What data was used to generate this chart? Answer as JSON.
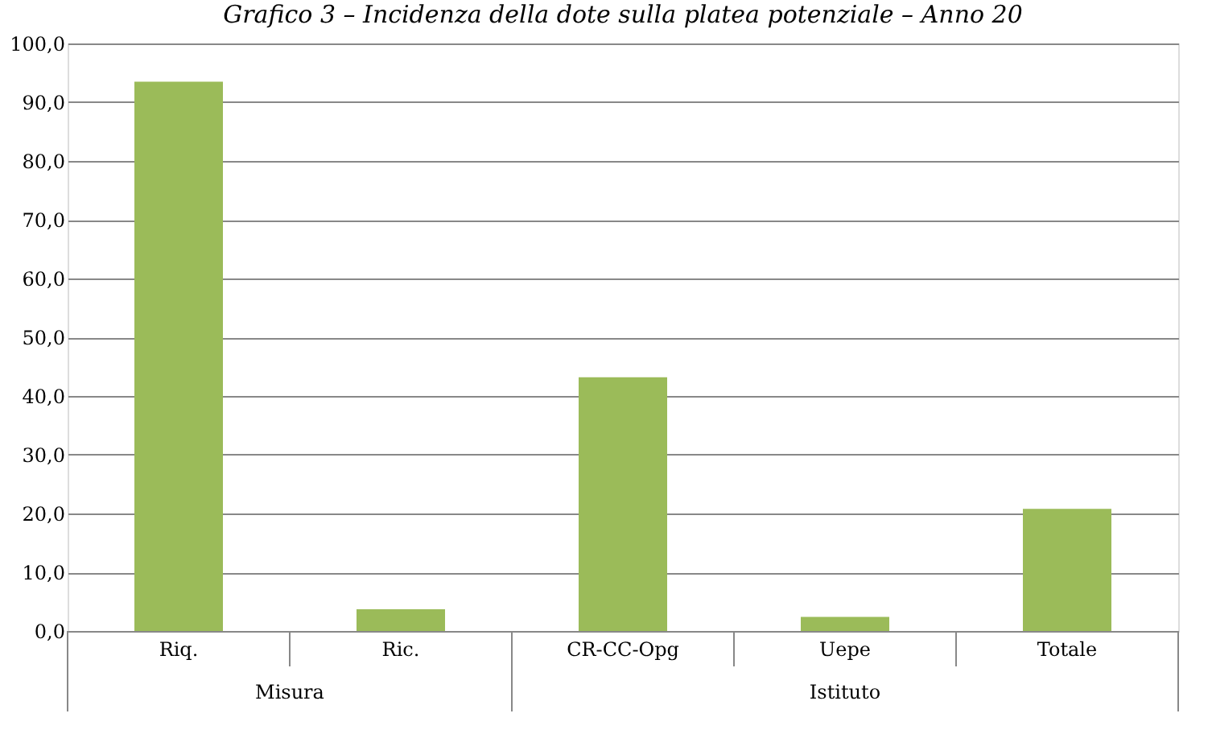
{
  "chart_data": {
    "type": "bar",
    "title": "Grafico 3 – Incidenza della dote sulla platea potenziale – Anno 20",
    "categories": [
      "Riq.",
      "Ric.",
      "CR-CC-Opg",
      "Uepe",
      "Totale"
    ],
    "values": [
      93.5,
      3.7,
      43.2,
      2.4,
      20.8
    ],
    "color": "#9bbb59",
    "ylim": [
      0,
      100
    ],
    "yticks": [
      {
        "value": 0,
        "label": "0,0"
      },
      {
        "value": 10,
        "label": "10,0"
      },
      {
        "value": 20,
        "label": "20,0"
      },
      {
        "value": 30,
        "label": "30,0"
      },
      {
        "value": 40,
        "label": "40,0"
      },
      {
        "value": 50,
        "label": "50,0"
      },
      {
        "value": 60,
        "label": "60,0"
      },
      {
        "value": 70,
        "label": "70,0"
      },
      {
        "value": 80,
        "label": "80,0"
      },
      {
        "value": 90,
        "label": "90,0"
      },
      {
        "value": 100,
        "label": "100,0"
      }
    ],
    "annotations": [
      "Misura",
      "Istituto"
    ],
    "grid": "y"
  }
}
